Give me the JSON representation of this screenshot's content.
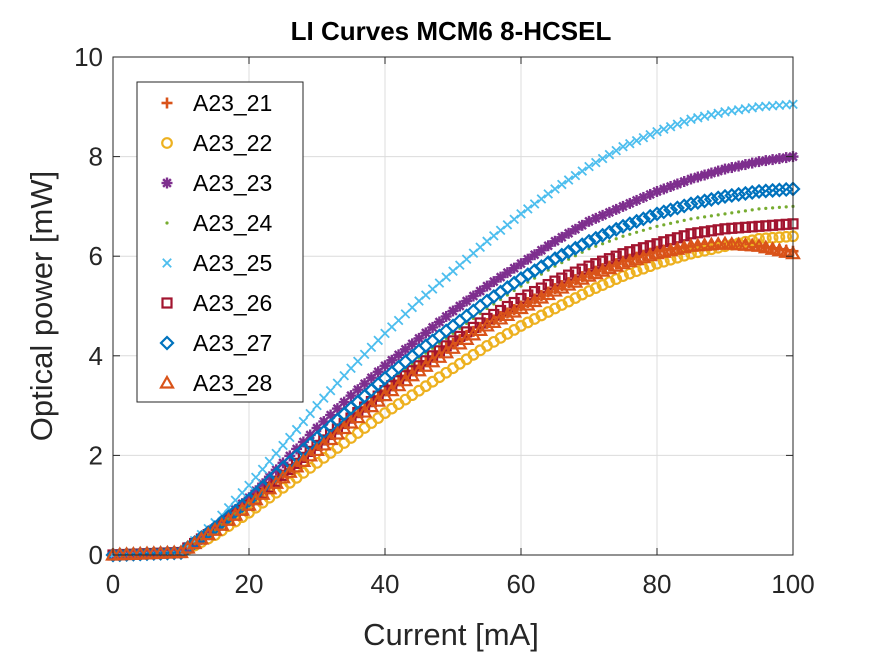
{
  "chart_data": {
    "type": "scatter",
    "title": "LI Curves MCM6 8-HCSEL",
    "xlabel": "Current [mA]",
    "ylabel": "Optical power [mW]",
    "xlim": [
      0,
      100
    ],
    "ylim": [
      0,
      10
    ],
    "xticks": [
      0,
      20,
      40,
      60,
      80,
      100
    ],
    "yticks": [
      0,
      2,
      4,
      6,
      8,
      10
    ],
    "xtick_labels": [
      "0",
      "20",
      "40",
      "60",
      "80",
      "100"
    ],
    "ytick_labels": [
      "0",
      "2",
      "4",
      "6",
      "8",
      "10"
    ],
    "grid": true,
    "legend_position": "top-left",
    "x": [
      0,
      10,
      15,
      20,
      25,
      30,
      35,
      40,
      45,
      50,
      55,
      60,
      65,
      70,
      75,
      80,
      85,
      90,
      95,
      100
    ],
    "series": [
      {
        "name": "A23_21",
        "marker": "plus",
        "color": "#D95319",
        "values": [
          0,
          0.05,
          0.5,
          1.05,
          1.6,
          2.2,
          2.75,
          3.3,
          3.8,
          4.25,
          4.65,
          5.0,
          5.35,
          5.65,
          5.9,
          6.1,
          6.2,
          6.25,
          6.2,
          6.1
        ]
      },
      {
        "name": "A23_22",
        "marker": "circle",
        "color": "#EDB120",
        "values": [
          0,
          0.05,
          0.4,
          0.85,
          1.35,
          1.85,
          2.35,
          2.85,
          3.3,
          3.75,
          4.2,
          4.6,
          4.95,
          5.3,
          5.6,
          5.85,
          6.05,
          6.2,
          6.35,
          6.4
        ]
      },
      {
        "name": "A23_23",
        "marker": "star",
        "color": "#7E2F8E",
        "values": [
          0,
          0.05,
          0.55,
          1.15,
          1.85,
          2.55,
          3.2,
          3.8,
          4.35,
          4.9,
          5.4,
          5.85,
          6.3,
          6.7,
          7.0,
          7.3,
          7.55,
          7.75,
          7.9,
          8.0
        ]
      },
      {
        "name": "A23_24",
        "marker": "dot",
        "color": "#77AC30",
        "values": [
          0,
          0.05,
          0.5,
          1.05,
          1.65,
          2.25,
          2.85,
          3.4,
          3.95,
          4.45,
          4.95,
          5.4,
          5.8,
          6.15,
          6.4,
          6.6,
          6.75,
          6.85,
          6.95,
          7.0
        ]
      },
      {
        "name": "A23_25",
        "marker": "x",
        "color": "#4DBEEE",
        "values": [
          0,
          0.05,
          0.65,
          1.4,
          2.2,
          3.0,
          3.75,
          4.45,
          5.1,
          5.7,
          6.3,
          6.85,
          7.35,
          7.8,
          8.2,
          8.5,
          8.75,
          8.9,
          9.0,
          9.05
        ]
      },
      {
        "name": "A23_26",
        "marker": "square",
        "color": "#A2142F",
        "values": [
          0,
          0.05,
          0.5,
          1.0,
          1.6,
          2.2,
          2.75,
          3.3,
          3.8,
          4.3,
          4.75,
          5.15,
          5.5,
          5.8,
          6.05,
          6.25,
          6.45,
          6.55,
          6.6,
          6.65
        ]
      },
      {
        "name": "A23_27",
        "marker": "diamond",
        "color": "#0072BD",
        "values": [
          0,
          0.05,
          0.55,
          1.1,
          1.75,
          2.35,
          2.95,
          3.55,
          4.1,
          4.6,
          5.1,
          5.55,
          5.95,
          6.3,
          6.6,
          6.85,
          7.05,
          7.2,
          7.3,
          7.35
        ]
      },
      {
        "name": "A23_28",
        "marker": "triangle",
        "color": "#D95319",
        "values": [
          0,
          0.05,
          0.5,
          1.0,
          1.55,
          2.1,
          2.65,
          3.2,
          3.7,
          4.15,
          4.6,
          4.95,
          5.3,
          5.6,
          5.85,
          6.05,
          6.2,
          6.25,
          6.2,
          6.05
        ]
      }
    ]
  }
}
